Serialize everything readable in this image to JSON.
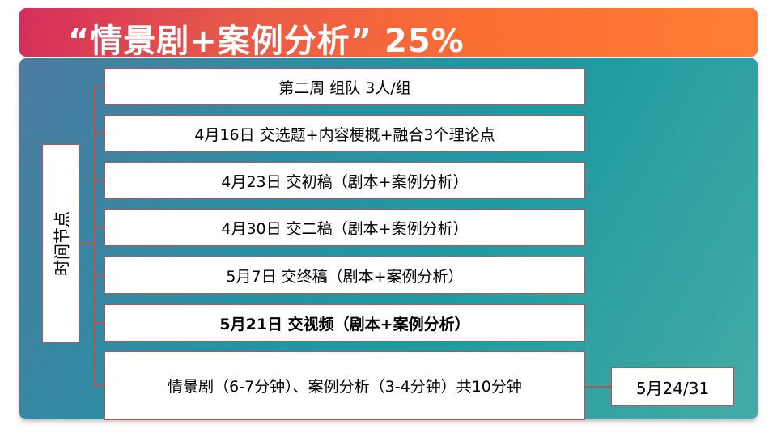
{
  "title": "“情景剧+案例分析”  25%",
  "side_label": "时间节点",
  "milestones": [
    {
      "text": "第二周 组队 3人/组"
    },
    {
      "text": "4月16日 交选题+内容梗概+融合3个理论点"
    },
    {
      "text": "4月23日 交初稿（剧本+案例分析）"
    },
    {
      "text": "4月30日 交二稿（剧本+案例分析）"
    },
    {
      "text": "5月7日 交终稿（剧本+案例分析）"
    },
    {
      "text": "5月21日 交视频（剧本+案例分析）",
      "bold": true
    },
    {
      "text": "情景剧（6-7分钟）、案例分析（3-4分钟）共10分钟"
    }
  ],
  "final_date": "5月24/31",
  "colors": {
    "banner_start": "#d42e5c",
    "banner_end": "#ff7e33",
    "panel": "#1e9aa0",
    "border": "#c0504d"
  }
}
